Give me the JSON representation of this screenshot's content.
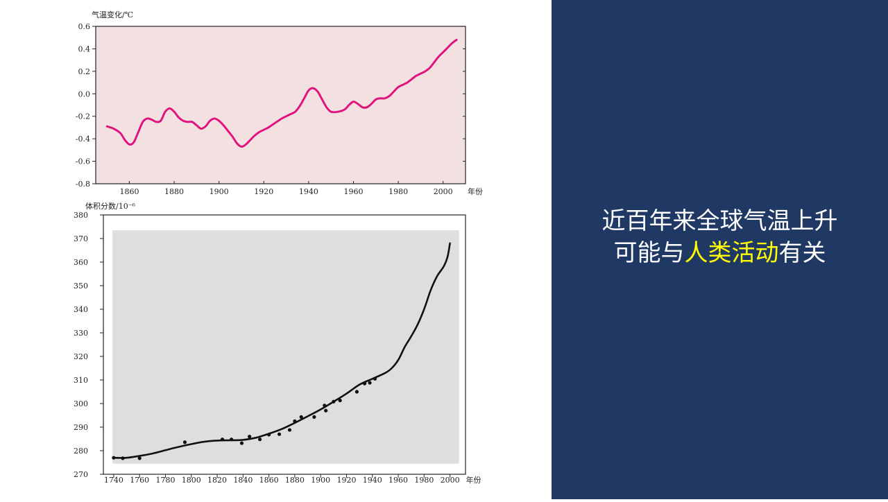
{
  "slide": {
    "title_line1": "近百年来全球气温上升",
    "title_line2_pre": "可能与",
    "title_line2_highlight": "人类活动",
    "title_line2_post": "有关",
    "panel_color": "#203864",
    "highlight_color": "#ffff00"
  },
  "chart_data": [
    {
      "type": "line",
      "ylabel": "气温变化/℃",
      "xlabel": "年份",
      "xlim": [
        1845,
        2010
      ],
      "ylim": [
        -0.8,
        0.6
      ],
      "x_ticks": [
        "1860",
        "1880",
        "1900",
        "1920",
        "1940",
        "1960",
        "1980",
        "2000"
      ],
      "y_ticks": [
        "0.6",
        "0.4",
        "0.2",
        "0.0",
        "-0.2",
        "-0.4",
        "-0.6",
        "-0.8"
      ],
      "background_color": "#f3e1e1",
      "line_color": "#e0147e",
      "series": [
        {
          "x": [
            1850,
            1853,
            1856,
            1858,
            1860,
            1862,
            1864,
            1866,
            1868,
            1870,
            1872,
            1874,
            1876,
            1878,
            1880,
            1882,
            1884,
            1886,
            1888,
            1890,
            1892,
            1894,
            1896,
            1898,
            1900,
            1902,
            1904,
            1906,
            1908,
            1910,
            1912,
            1914,
            1916,
            1918,
            1920,
            1922,
            1925,
            1928,
            1930,
            1932,
            1934,
            1936,
            1938,
            1940,
            1942,
            1944,
            1946,
            1948,
            1950,
            1953,
            1956,
            1958,
            1960,
            1962,
            1964,
            1966,
            1968,
            1970,
            1972,
            1974,
            1976,
            1978,
            1980,
            1982,
            1984,
            1986,
            1988,
            1990,
            1992,
            1994,
            1996,
            1998,
            2000,
            2002,
            2004,
            2006
          ],
          "y": [
            -0.29,
            -0.31,
            -0.35,
            -0.41,
            -0.45,
            -0.43,
            -0.34,
            -0.25,
            -0.22,
            -0.23,
            -0.25,
            -0.24,
            -0.16,
            -0.13,
            -0.16,
            -0.21,
            -0.24,
            -0.25,
            -0.25,
            -0.28,
            -0.31,
            -0.29,
            -0.24,
            -0.22,
            -0.24,
            -0.28,
            -0.33,
            -0.38,
            -0.44,
            -0.47,
            -0.45,
            -0.41,
            -0.37,
            -0.34,
            -0.32,
            -0.3,
            -0.26,
            -0.22,
            -0.2,
            -0.18,
            -0.16,
            -0.11,
            -0.04,
            0.03,
            0.05,
            0.02,
            -0.05,
            -0.12,
            -0.16,
            -0.16,
            -0.14,
            -0.1,
            -0.07,
            -0.09,
            -0.12,
            -0.12,
            -0.09,
            -0.05,
            -0.04,
            -0.04,
            -0.02,
            0.02,
            0.06,
            0.08,
            0.1,
            0.13,
            0.16,
            0.18,
            0.2,
            0.23,
            0.28,
            0.33,
            0.37,
            0.41,
            0.45,
            0.48
          ]
        }
      ]
    },
    {
      "type": "line",
      "ylabel": "体积分数/10⁻⁶",
      "xlabel": "年份",
      "xlim": [
        1732,
        2012
      ],
      "ylim": [
        270,
        380
      ],
      "x_ticks": [
        "1740",
        "1760",
        "1780",
        "1800",
        "1820",
        "1840",
        "1860",
        "1880",
        "1900",
        "1920",
        "1940",
        "1960",
        "1980",
        "2000"
      ],
      "y_ticks": [
        "380",
        "370",
        "360",
        "350",
        "340",
        "330",
        "320",
        "310",
        "300",
        "290",
        "280",
        "270"
      ],
      "background_color": "#dddee0",
      "plot_region": {
        "x": [
          1739,
          2007
        ],
        "y": [
          274.5,
          373.5
        ]
      },
      "line_color": "#111111",
      "series": [
        {
          "name": "curve",
          "x": [
            1740,
            1750,
            1760,
            1770,
            1780,
            1790,
            1800,
            1810,
            1820,
            1830,
            1840,
            1850,
            1860,
            1870,
            1880,
            1890,
            1900,
            1910,
            1920,
            1930,
            1940,
            1950,
            1955,
            1960,
            1965,
            1970,
            1975,
            1980,
            1985,
            1990,
            1995,
            1998,
            2000
          ],
          "y": [
            277,
            277,
            277.8,
            278.8,
            280.2,
            281.6,
            282.8,
            283.8,
            284.3,
            284.4,
            284.6,
            285.5,
            287.2,
            289.2,
            291.8,
            294.6,
            297.5,
            300.8,
            304.2,
            308,
            310.5,
            313,
            315,
            318.5,
            324,
            328.5,
            333.5,
            340,
            348,
            354,
            358,
            362,
            368
          ]
        },
        {
          "name": "points",
          "x": [
            1740,
            1747,
            1760,
            1795,
            1824,
            1831,
            1839,
            1845,
            1853,
            1860,
            1868,
            1876,
            1880,
            1885,
            1895,
            1903,
            1904,
            1910,
            1915,
            1928,
            1934,
            1938,
            1942
          ],
          "y": [
            277,
            276.8,
            276.8,
            283.6,
            284.8,
            284.8,
            283.2,
            286,
            284.8,
            286.8,
            287,
            288.8,
            292.5,
            294.3,
            294.3,
            299.2,
            297,
            300.8,
            301.3,
            305,
            308.5,
            308.8,
            310.5
          ]
        }
      ]
    }
  ]
}
